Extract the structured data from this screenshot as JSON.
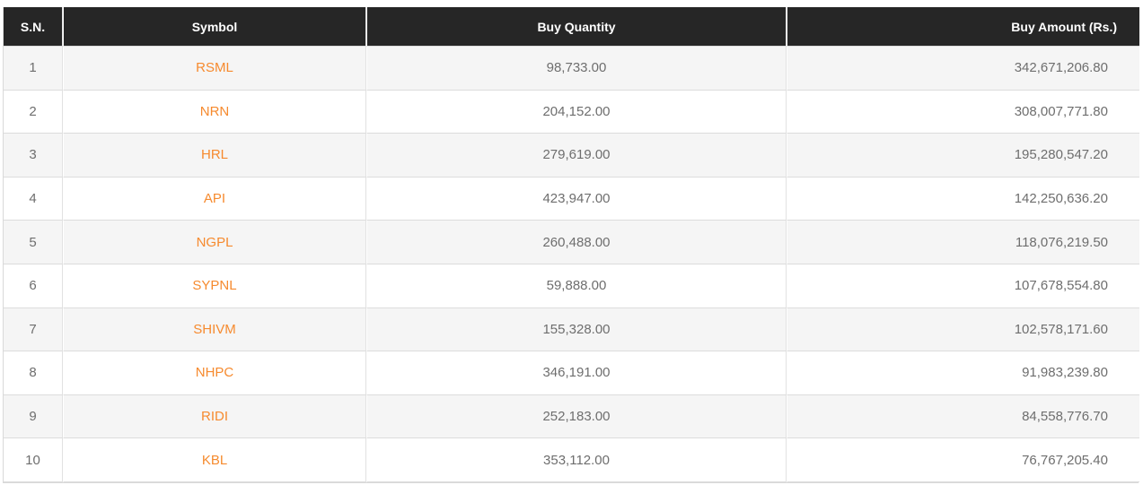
{
  "table": {
    "columns": [
      {
        "key": "sn",
        "label": "S.N."
      },
      {
        "key": "symbol",
        "label": "Symbol"
      },
      {
        "key": "qty",
        "label": "Buy Quantity"
      },
      {
        "key": "amount",
        "label": "Buy Amount (Rs.)"
      }
    ],
    "rows": [
      {
        "sn": "1",
        "symbol": "RSML",
        "qty": "98,733.00",
        "amount": "342,671,206.80"
      },
      {
        "sn": "2",
        "symbol": "NRN",
        "qty": "204,152.00",
        "amount": "308,007,771.80"
      },
      {
        "sn": "3",
        "symbol": "HRL",
        "qty": "279,619.00",
        "amount": "195,280,547.20"
      },
      {
        "sn": "4",
        "symbol": "API",
        "qty": "423,947.00",
        "amount": "142,250,636.20"
      },
      {
        "sn": "5",
        "symbol": "NGPL",
        "qty": "260,488.00",
        "amount": "118,076,219.50"
      },
      {
        "sn": "6",
        "symbol": "SYPNL",
        "qty": "59,888.00",
        "amount": "107,678,554.80"
      },
      {
        "sn": "7",
        "symbol": "SHIVM",
        "qty": "155,328.00",
        "amount": "102,578,171.60"
      },
      {
        "sn": "8",
        "symbol": "NHPC",
        "qty": "346,191.00",
        "amount": "91,983,239.80"
      },
      {
        "sn": "9",
        "symbol": "RIDI",
        "qty": "252,183.00",
        "amount": "84,558,776.70"
      },
      {
        "sn": "10",
        "symbol": "KBL",
        "qty": "353,112.00",
        "amount": "76,767,205.40"
      }
    ]
  },
  "colors": {
    "header_background": "#262626",
    "header_text": "#ffffff",
    "stripe_row_background": "#f5f5f5",
    "plain_row_background": "#ffffff",
    "body_text": "#6e6e6e",
    "symbol_accent": "#f68a2e",
    "grid_border": "#dcdcdc"
  }
}
